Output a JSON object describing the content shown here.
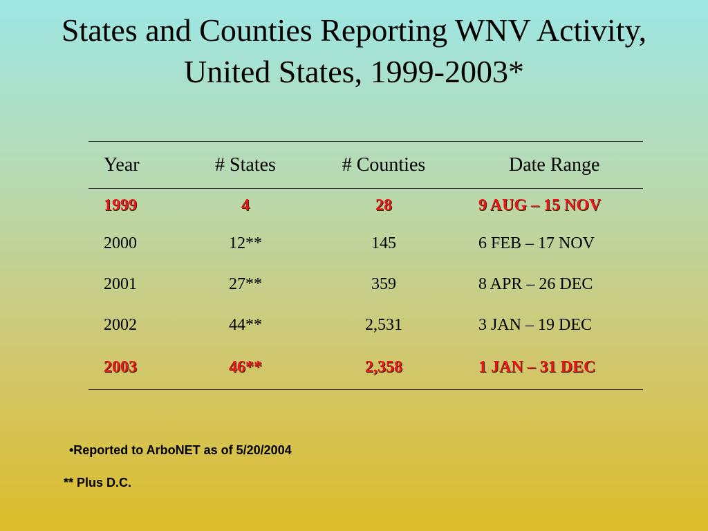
{
  "title": {
    "line1": "States and Counties Reporting WNV Activity,",
    "line2": "United States, 1999-2003*"
  },
  "table": {
    "headers": [
      "Year",
      "# States",
      "# Counties",
      "Date Range"
    ],
    "rows": [
      {
        "year": "1999",
        "states": "4",
        "counties": "28",
        "range": "9 AUG – 15 NOV",
        "highlight": true
      },
      {
        "year": "2000",
        "states": "12**",
        "counties": "145",
        "range": "6 FEB – 17 NOV",
        "highlight": false
      },
      {
        "year": "2001",
        "states": "27**",
        "counties": "359",
        "range": "8 APR – 26 DEC",
        "highlight": false
      },
      {
        "year": "2002",
        "states": "44**",
        "counties": "2,531",
        "range": "3 JAN – 19 DEC",
        "highlight": false
      },
      {
        "year": "2003",
        "states": "46**",
        "counties": "2,358",
        "range": "1 JAN – 31 DEC",
        "highlight": true
      }
    ]
  },
  "footnotes": {
    "reported": "•Reported to ArboNET as of  5/20/2004",
    "plus_dc": "** Plus D.C."
  },
  "colors": {
    "highlight": "#e8161b"
  }
}
